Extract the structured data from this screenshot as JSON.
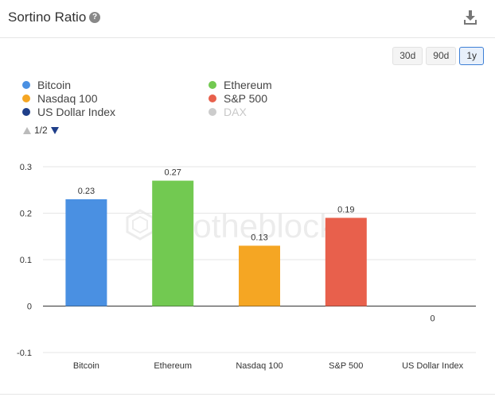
{
  "header": {
    "title": "Sortino Ratio",
    "help_glyph": "?",
    "help_icon": "question-circle-icon",
    "download_icon": "download-icon"
  },
  "ranges": [
    {
      "label": "30d",
      "active": false
    },
    {
      "label": "90d",
      "active": false
    },
    {
      "label": "1y",
      "active": true
    }
  ],
  "legend": {
    "items": [
      {
        "label": "Bitcoin",
        "color": "#4a90e2",
        "enabled": true
      },
      {
        "label": "Ethereum",
        "color": "#72c951",
        "enabled": true
      },
      {
        "label": "Nasdaq 100",
        "color": "#f5a623",
        "enabled": true
      },
      {
        "label": "S&P 500",
        "color": "#e8604c",
        "enabled": true
      },
      {
        "label": "US Dollar Index",
        "color": "#1f3f8a",
        "enabled": true
      },
      {
        "label": "DAX",
        "color": "#cccccc",
        "enabled": false
      }
    ],
    "page": "1/2"
  },
  "chart_data": {
    "type": "bar",
    "categories": [
      "Bitcoin",
      "Ethereum",
      "Nasdaq 100",
      "S&P 500",
      "US Dollar Index"
    ],
    "values": [
      0.23,
      0.27,
      0.13,
      0.19,
      0
    ],
    "value_labels": [
      "0.23",
      "0.27",
      "0.13",
      "0.19",
      "0"
    ],
    "colors": [
      "#4a90e2",
      "#72c951",
      "#f5a623",
      "#e8604c",
      "#1f3f8a"
    ],
    "yticks": [
      0.3,
      0.2,
      0.1,
      0,
      -0.1
    ],
    "ytick_labels": [
      "0.3",
      "0.2",
      "0.1",
      "0",
      "-0.1"
    ],
    "ylim": [
      -0.1,
      0.3
    ],
    "grid": true,
    "legend_position": "top-left",
    "watermark": "intotheblock"
  }
}
